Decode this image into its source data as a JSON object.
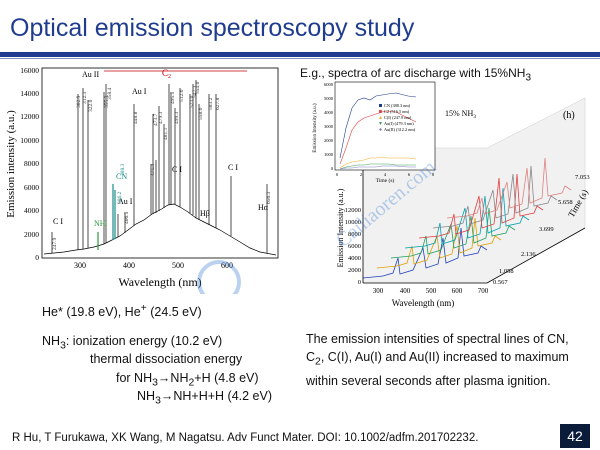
{
  "slide": {
    "title": "Optical emission spectroscopy study",
    "page_number": "42",
    "reference": "R Hu, T Furukawa, XK Wang, M Nagatsu. Adv Funct Mater. DOI: 10.1002/adfm.201702232.",
    "colors": {
      "title": "#1f3c8f",
      "rule": "#1f3c8f",
      "page_badge": "#0b1b3a"
    }
  },
  "left_figure": {
    "ylabel": "Emission intensity (a.u.)",
    "xlabel": "Wavelength (nm)",
    "y_ticks": [
      "0",
      "2000",
      "4000",
      "6000",
      "8000",
      "10000",
      "12000",
      "14000",
      "16000"
    ],
    "x_ticks": [
      "300",
      "400",
      "500",
      "600"
    ],
    "labels": {
      "c2": "C",
      "c2_sub": "2",
      "au2": "Au II",
      "au1": "Au I",
      "au1b": "Au I",
      "cn": "CN",
      "nh": "NH",
      "ci_left": "C I",
      "ci_mid": "C I",
      "ci_right": "C I",
      "hbeta": "Hβ",
      "halpha": "Hα"
    },
    "peak_labels": [
      "247.9",
      "302.9",
      "312.3",
      "322.0",
      "355.3",
      "358.4",
      "386.2",
      "388.3",
      "406.5",
      "436.3",
      "448.8",
      "471.4",
      "473.7",
      "479.3",
      "481.1",
      "486.1",
      "495.5",
      "499.3",
      "509.8",
      "512.6",
      "523.0",
      "547.3",
      "554.0",
      "558.6",
      "563.5",
      "583.2",
      "597.5",
      "627.8",
      "656.3"
    ]
  },
  "right_figure": {
    "caption": "E.g., spectra of arc discharge with 15%NH",
    "caption_sub": "3",
    "panel_label": "(h)",
    "nh3_label": "15% NH",
    "nh3_sub": "3",
    "ylabel": "Emission Intensity (a.u.)",
    "xlabel": "Wavelength (nm)",
    "x_ticks": [
      "300",
      "400",
      "500",
      "600",
      "700"
    ],
    "y_ticks": [
      "0",
      "2000",
      "4000",
      "6000",
      "8000",
      "10000",
      "12000"
    ],
    "time_label": "Time (s)",
    "time_ticks": [
      "0.567",
      "1.058",
      "2.136",
      "3.699",
      "5.658",
      "7.053"
    ],
    "inset": {
      "ylabel": "Emission Intensity (a.u.)",
      "xlabel": "Time (s)",
      "y_ticks": [
        "0",
        "1000",
        "2000",
        "3000",
        "4000",
        "5000",
        "6000"
      ],
      "x_ticks": [
        "0",
        "2",
        "4",
        "6",
        "8"
      ],
      "legend": [
        "CN (388.3 nm)",
        "C2 (516.5 nm)",
        "C(I) (247.9 nm)",
        "Au(I) (479.3 nm)",
        "Au(II) (312.2 nm)"
      ]
    }
  },
  "text": {
    "he_line": "He* (19.8 eV), He",
    "he_sup": "+",
    "he_tail": " (24.5 eV)",
    "nh3_a": "NH",
    "nh3_a_tail": ": ionization energy (10.2 eV)",
    "nh3_b": "thermal dissociation energy",
    "nh3_c_pre": "for NH",
    "nh3_c_arrow": "→NH",
    "nh3_c_tail": "+H (4.8 eV)",
    "nh3_d_pre": "NH",
    "nh3_d_tail": "→NH+H+H (4.2 eV)",
    "sub3": "3",
    "sub2": "2",
    "right_para_1": "The emission intensities of spectral lines of CN,",
    "right_para_2a": "C",
    "right_para_2b": ", C(I), Au(I) and Au(II) increased to maximum",
    "right_para_3": "within several seconds after plasma ignition."
  },
  "watermark": {
    "text": "Cailiaoren.com"
  }
}
